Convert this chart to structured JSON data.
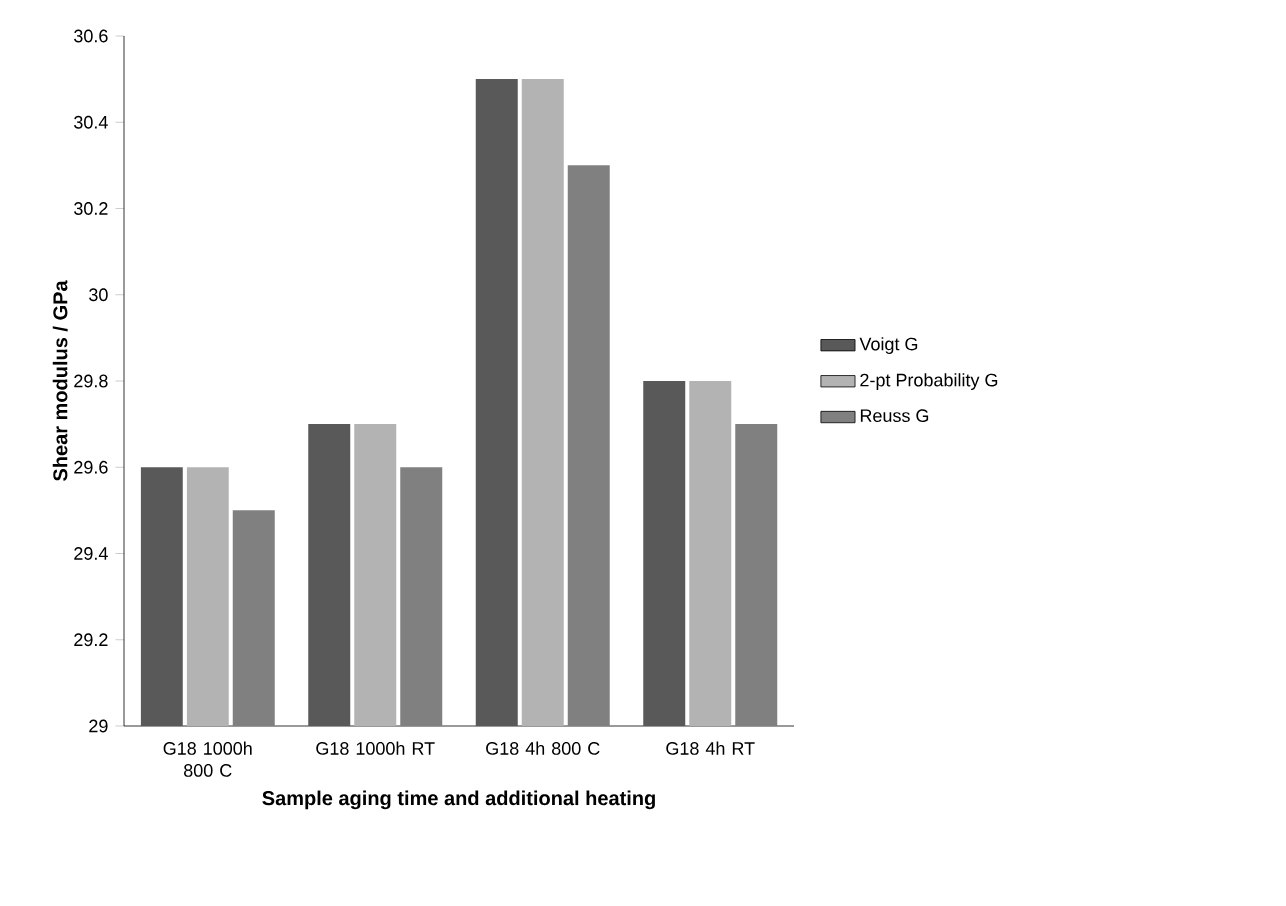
{
  "chart_data": {
    "type": "bar",
    "xlabel": "Sample aging time and additional heating",
    "ylabel": "Shear modulus / GPa",
    "categories": [
      "G18 1000h 800 C",
      "G18 1000h RT",
      "G18 4h 800 C",
      "G18 4h RT"
    ],
    "series": [
      {
        "name": "Voigt G",
        "color": "#595959",
        "values": [
          29.6,
          29.7,
          30.5,
          29.8
        ]
      },
      {
        "name": "2-pt Probability G",
        "color": "#b3b3b3",
        "values": [
          29.6,
          29.7,
          30.5,
          29.8
        ]
      },
      {
        "name": "Reuss G",
        "color": "#808080",
        "values": [
          29.5,
          29.6,
          30.3,
          29.7
        ]
      }
    ],
    "ylim": [
      29,
      30.6
    ],
    "yticks": [
      29,
      29.2,
      29.4,
      29.6,
      29.8,
      30,
      30.2,
      30.4,
      30.6
    ],
    "grid": false,
    "legend": "right"
  }
}
